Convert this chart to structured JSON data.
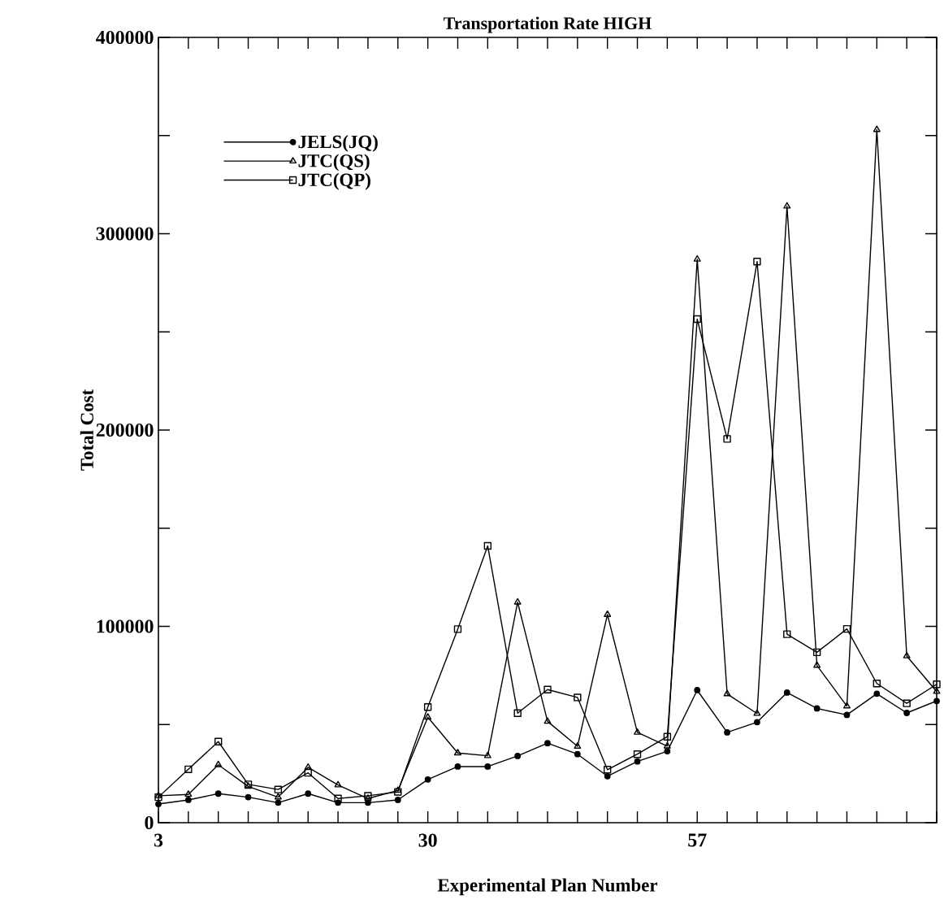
{
  "chart_data": {
    "type": "line",
    "title": "Transportation Rate HIGH",
    "xlabel": "Experimental Plan Number",
    "ylabel": "Total Cost",
    "x": [
      3,
      6,
      9,
      12,
      15,
      18,
      21,
      24,
      27,
      30,
      33,
      36,
      39,
      42,
      45,
      48,
      51,
      54,
      57,
      60,
      63,
      66,
      69,
      72,
      75,
      78,
      81
    ],
    "series": [
      {
        "name": "JELS(JQ)",
        "color": "#000000",
        "marker": "circle",
        "values": [
          9500,
          11600,
          14800,
          13000,
          10200,
          14800,
          10200,
          10200,
          11600,
          22000,
          28600,
          28600,
          34000,
          40500,
          34900,
          23700,
          31200,
          36400,
          67500,
          46000,
          51200,
          66300,
          58200,
          54900,
          65700,
          55900,
          62000
        ]
      },
      {
        "name": "JTC(QS)",
        "color": "#000000",
        "marker": "triangle",
        "values": [
          13700,
          14400,
          29500,
          18500,
          13000,
          28200,
          19200,
          12300,
          16400,
          53700,
          35500,
          34100,
          112300,
          51600,
          38900,
          106000,
          46000,
          39000,
          287000,
          65600,
          55600,
          314000,
          80100,
          59400,
          353000,
          84900,
          66800
        ]
      },
      {
        "name": "JTC(QP)",
        "color": "#000000",
        "marker": "square",
        "values": [
          13000,
          27200,
          41300,
          19500,
          16900,
          25400,
          12300,
          13700,
          15700,
          58900,
          98600,
          141000,
          55800,
          67800,
          63800,
          27000,
          34900,
          43800,
          256500,
          195500,
          285800,
          96000,
          86800,
          98700,
          70900,
          60800,
          70500
        ]
      }
    ],
    "xlim": [
      3,
      81
    ],
    "xticks": [
      3,
      {
        "value": 6,
        "label": null
      },
      {
        "value": 9,
        "label": null
      },
      {
        "value": 12,
        "label": null
      },
      {
        "value": 15,
        "label": null
      },
      {
        "value": 18,
        "label": null
      },
      {
        "value": 21,
        "label": null
      },
      {
        "value": 24,
        "label": null
      },
      {
        "value": 27,
        "label": null
      },
      30,
      {
        "value": 33,
        "label": null
      },
      {
        "value": 36,
        "label": null
      },
      {
        "value": 39,
        "label": null
      },
      {
        "value": 42,
        "label": null
      },
      {
        "value": 45,
        "label": null
      },
      {
        "value": 48,
        "label": null
      },
      {
        "value": 51,
        "label": null
      },
      {
        "value": 54,
        "label": null
      },
      57,
      {
        "value": 60,
        "label": null
      },
      {
        "value": 63,
        "label": null
      },
      {
        "value": 66,
        "label": null
      },
      {
        "value": 69,
        "label": null
      },
      {
        "value": 72,
        "label": null
      },
      {
        "value": 75,
        "label": null
      },
      {
        "value": 78,
        "label": null
      },
      {
        "value": 81,
        "label": null
      }
    ],
    "ylim": [
      0,
      400000
    ],
    "yticks": [
      0,
      {
        "value": 50000,
        "label": null
      },
      100000,
      {
        "value": 150000,
        "label": null
      },
      200000,
      {
        "value": 250000,
        "label": null
      },
      300000,
      {
        "value": 350000,
        "label": null
      },
      400000
    ],
    "grid": false,
    "legend": "top left",
    "line_style": "solid"
  }
}
